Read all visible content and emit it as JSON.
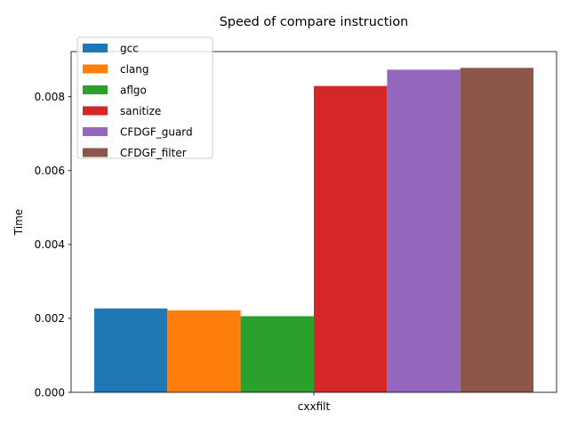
{
  "chart_data": {
    "type": "bar",
    "title": "Speed of compare instruction",
    "xlabel": "",
    "ylabel": "Time",
    "categories": [
      "cxxfilt"
    ],
    "ylim": [
      0,
      0.00922
    ],
    "yticks": [
      "0.000",
      "0.002",
      "0.004",
      "0.006",
      "0.008"
    ],
    "ytick_values": [
      0,
      0.002,
      0.004,
      0.006,
      0.008
    ],
    "grid": false,
    "legend_position": "top-left",
    "series": [
      {
        "name": "gcc",
        "values": [
          0.00227
        ],
        "color": "#1f77b4"
      },
      {
        "name": "clang",
        "values": [
          0.00222
        ],
        "color": "#ff7f0e"
      },
      {
        "name": "aflgo",
        "values": [
          0.00206
        ],
        "color": "#2ca02c"
      },
      {
        "name": "sanitize",
        "values": [
          0.00829
        ],
        "color": "#d62728"
      },
      {
        "name": "CFDGF_guard",
        "values": [
          0.00873
        ],
        "color": "#9467bd"
      },
      {
        "name": "CFDGF_filter",
        "values": [
          0.00878
        ],
        "color": "#8c564b"
      }
    ]
  }
}
